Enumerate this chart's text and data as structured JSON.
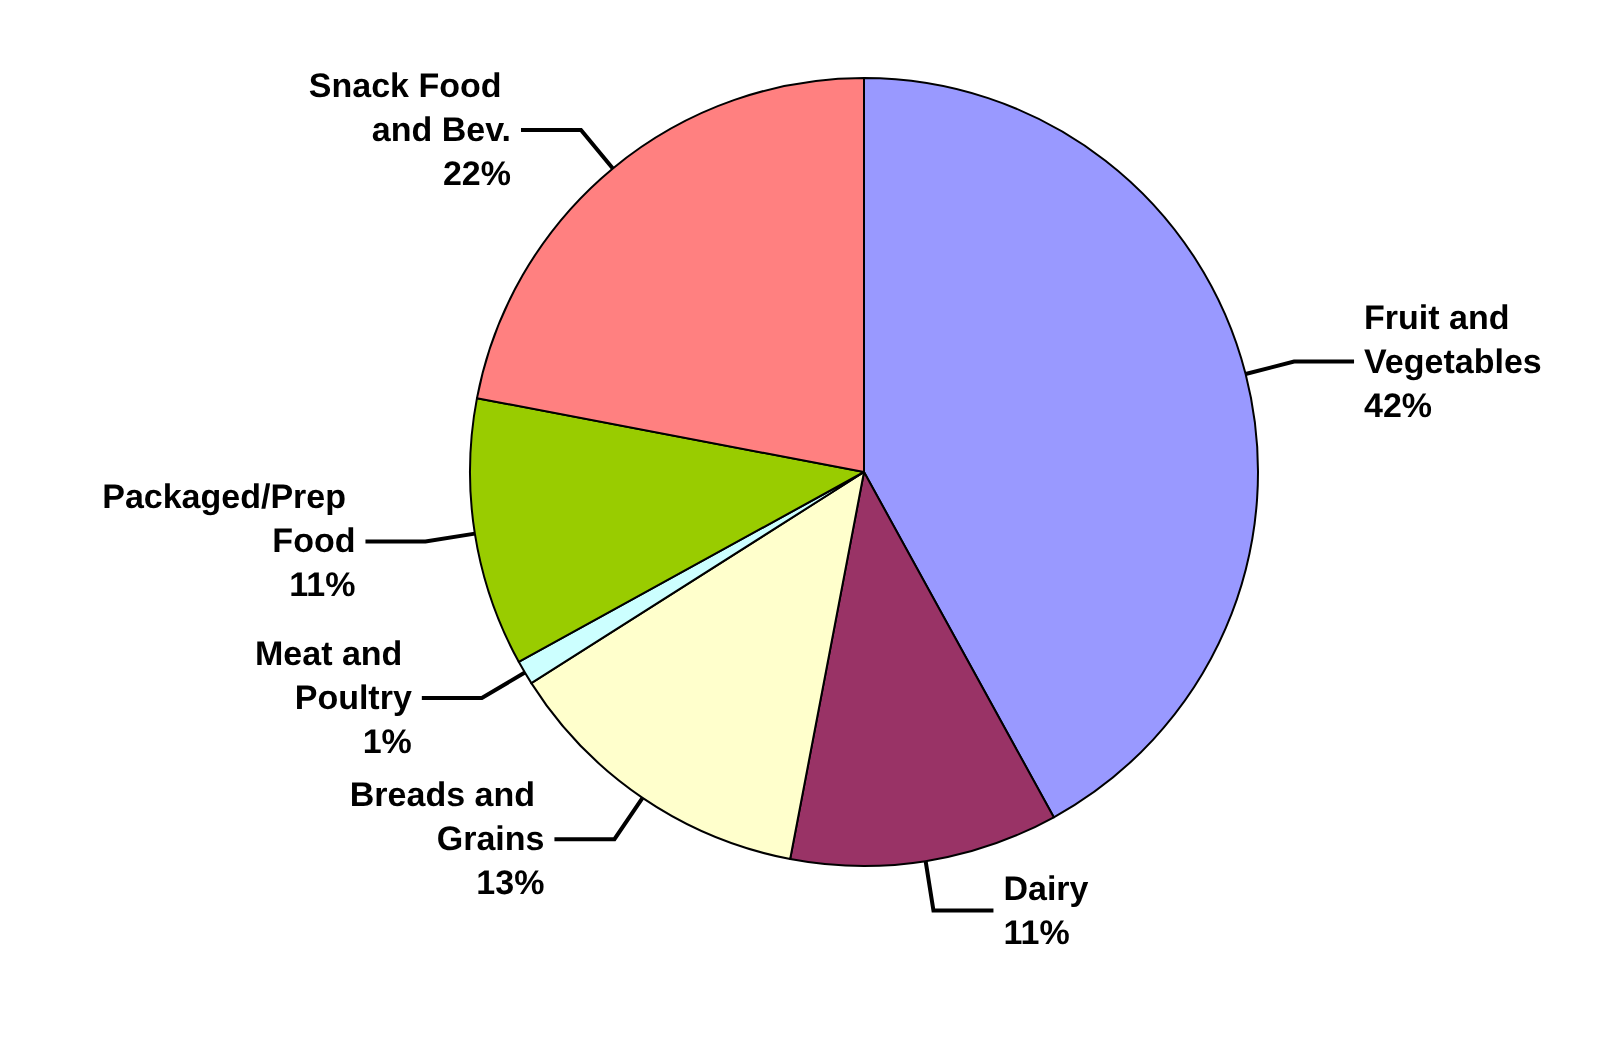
{
  "chart_data": {
    "type": "pie",
    "categories": [
      "Fruit and Vegetables",
      "Dairy",
      "Breads and Grains",
      "Meat and Poultry",
      "Packaged/Prep Food",
      "Snack Food and Bev."
    ],
    "values": [
      42,
      11,
      13,
      1,
      11,
      22
    ],
    "value_labels": [
      "42%",
      "11%",
      "13%",
      "1%",
      "11%",
      "22%"
    ],
    "colors": [
      "#9999ff",
      "#993366",
      "#ffffcc",
      "#ccffff",
      "#99cc00",
      "#ff8080"
    ],
    "legend": false
  }
}
